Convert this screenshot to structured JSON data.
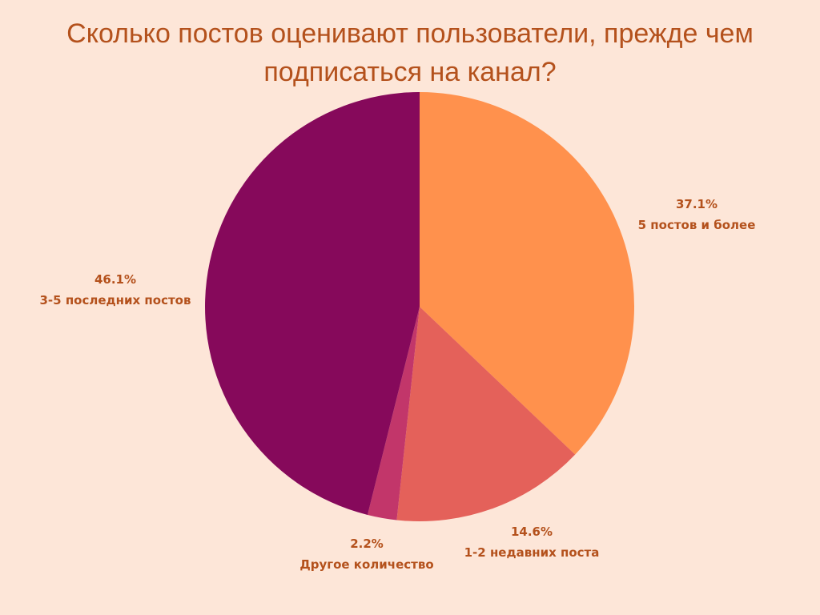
{
  "chart_data": {
    "type": "pie",
    "title": "Сколько постов оценивают пользователи, прежде чем подписаться на канал?",
    "slices": [
      {
        "label": "5 постов и более",
        "value": 37.1,
        "value_label": "37.1%",
        "color": "#FF914D"
      },
      {
        "label": "1-2 недавних поста",
        "value": 14.6,
        "value_label": "14.6%",
        "color": "#E4615A"
      },
      {
        "label": "Другое количество",
        "value": 2.2,
        "value_label": "2.2%",
        "color": "#C2366A"
      },
      {
        "label": "3-5 последних постов",
        "value": 46.1,
        "value_label": "46.1%",
        "color": "#86095B"
      }
    ],
    "start_angle_deg": 0,
    "direction": "clockwise",
    "label_color": "#B4511C",
    "background": "#FDE6D8"
  }
}
